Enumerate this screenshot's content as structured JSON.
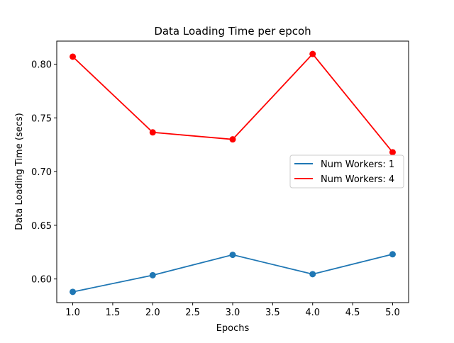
{
  "chart_data": {
    "type": "line",
    "title": "Data Loading Time per epcoh",
    "xlabel": "Epochs",
    "ylabel": "Data Loading Time (secs)",
    "x": [
      1.0,
      2.0,
      3.0,
      4.0,
      5.0
    ],
    "xlim": [
      0.8,
      5.2
    ],
    "ylim": [
      0.578,
      0.8215
    ],
    "xticks": [
      1.0,
      1.5,
      2.0,
      2.5,
      3.0,
      3.5,
      4.0,
      4.5,
      5.0
    ],
    "xtick_labels": [
      "1.0",
      "1.5",
      "2.0",
      "2.5",
      "3.0",
      "3.5",
      "4.0",
      "4.5",
      "5.0"
    ],
    "yticks": [
      0.6,
      0.65,
      0.7,
      0.75,
      0.8
    ],
    "ytick_labels": [
      "0.60",
      "0.65",
      "0.70",
      "0.75",
      "0.80"
    ],
    "grid": false,
    "legend_position": "center-right",
    "markers": true,
    "series": [
      {
        "name": "Num Workers: 1",
        "color": "#1f77b4",
        "values": [
          0.588,
          0.6035,
          0.6225,
          0.6045,
          0.623
        ]
      },
      {
        "name": "Num Workers: 4",
        "color": "#ff0000",
        "values": [
          0.807,
          0.7365,
          0.73,
          0.8095,
          0.718
        ]
      }
    ]
  }
}
